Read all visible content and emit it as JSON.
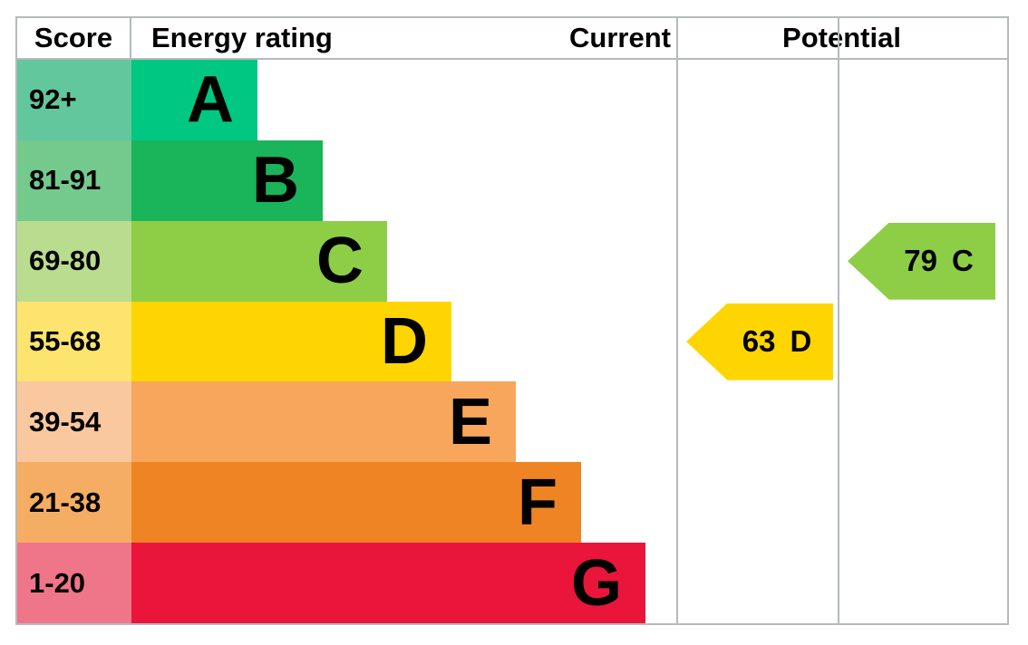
{
  "header": {
    "score": "Score",
    "energy_rating": "Energy rating",
    "current": "Current",
    "potential": "Potential"
  },
  "chart_data": {
    "type": "bar",
    "title": "Energy efficiency rating (EPC) chart",
    "columns": [
      "Score",
      "Energy rating",
      "Current",
      "Potential"
    ],
    "bands": [
      {
        "letter": "A",
        "score_range": "92+",
        "bar_color": "#00c781",
        "score_color": "#63c79d",
        "width_frac": 0.231
      },
      {
        "letter": "B",
        "score_range": "81-91",
        "bar_color": "#1ab45a",
        "score_color": "#74c98d",
        "width_frac": 0.35
      },
      {
        "letter": "C",
        "score_range": "69-80",
        "bar_color": "#8dce46",
        "score_color": "#b9dc8e",
        "width_frac": 0.468
      },
      {
        "letter": "D",
        "score_range": "55-68",
        "bar_color": "#ffd500",
        "score_color": "#fce46e",
        "width_frac": 0.586
      },
      {
        "letter": "E",
        "score_range": "39-54",
        "bar_color": "#f7a65b",
        "score_color": "#fac89f",
        "width_frac": 0.703
      },
      {
        "letter": "F",
        "score_range": "21-38",
        "bar_color": "#ef8424",
        "score_color": "#f5ad63",
        "width_frac": 0.822
      },
      {
        "letter": "G",
        "score_range": "1-20",
        "bar_color": "#e9153b",
        "score_color": "#ef7589",
        "width_frac": 0.94
      }
    ],
    "current": {
      "value": "63",
      "band": "D",
      "color": "#ffd500",
      "row_index": 3
    },
    "potential": {
      "value": "79",
      "band": "C",
      "color": "#8dce46",
      "row_index": 2
    },
    "layout_hints": {
      "grid": false,
      "legend": "none",
      "bars": "horizontal stepped"
    }
  }
}
